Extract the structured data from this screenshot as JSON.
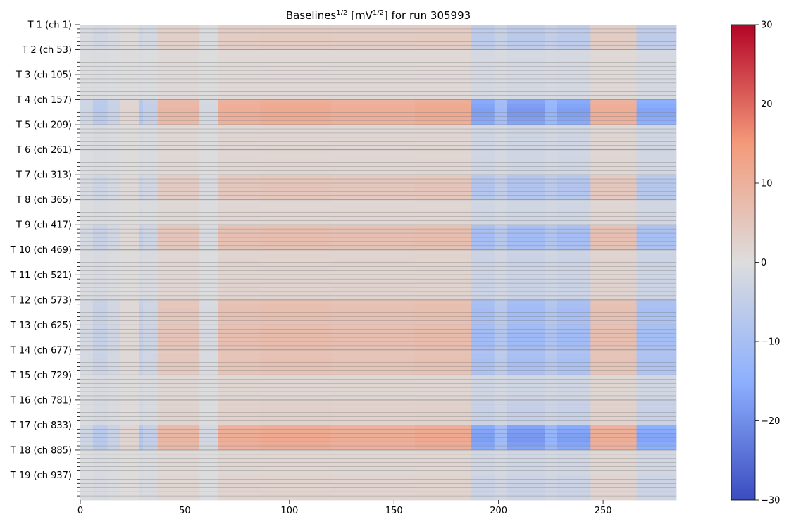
{
  "chart_data": {
    "type": "heatmap",
    "title": {
      "prefix": "Baselines",
      "sup1": "1/2",
      "middle": " [mV",
      "sup2": "1/2",
      "suffix": "] for run 305993"
    },
    "xlabel": "",
    "ylabel": "",
    "x_range": [
      0,
      285
    ],
    "x_ticks": [
      0,
      50,
      100,
      150,
      200,
      250
    ],
    "channels_per_row": 52,
    "rows": 19,
    "y_tick_labels": [
      "T 1 (ch 1)",
      "T 2 (ch 53)",
      "T 3 (ch 105)",
      "T 4 (ch 157)",
      "T 5 (ch 209)",
      "T 6 (ch 261)",
      "T 7 (ch 313)",
      "T 8 (ch 365)",
      "T 9 (ch 417)",
      "T 10 (ch 469)",
      "T 11 (ch 521)",
      "T 12 (ch 573)",
      "T 13 (ch 625)",
      "T 14 (ch 677)",
      "T 15 (ch 729)",
      "T 16 (ch 781)",
      "T 17 (ch 833)",
      "T 18 (ch 885)",
      "T 19 (ch 937)"
    ],
    "colorbar": {
      "colormap": "coolwarm",
      "vmin": -30,
      "vmax": 30,
      "ticks": [
        30,
        20,
        10,
        0,
        -10,
        -20,
        -30
      ]
    },
    "column_profile": [
      {
        "from": 0,
        "to": 6,
        "value": -3
      },
      {
        "from": 6,
        "to": 13,
        "value": -7
      },
      {
        "from": 13,
        "to": 19,
        "value": -4
      },
      {
        "from": 19,
        "to": 28,
        "value": 2
      },
      {
        "from": 28,
        "to": 30,
        "value": -8
      },
      {
        "from": 30,
        "to": 37,
        "value": -5
      },
      {
        "from": 37,
        "to": 57,
        "value": 9
      },
      {
        "from": 57,
        "to": 66,
        "value": -2
      },
      {
        "from": 66,
        "to": 86,
        "value": 11
      },
      {
        "from": 86,
        "to": 120,
        "value": 12
      },
      {
        "from": 120,
        "to": 160,
        "value": 11
      },
      {
        "from": 160,
        "to": 187,
        "value": 12
      },
      {
        "from": 187,
        "to": 198,
        "value": -18
      },
      {
        "from": 198,
        "to": 204,
        "value": -12
      },
      {
        "from": 204,
        "to": 222,
        "value": -19
      },
      {
        "from": 222,
        "to": 228,
        "value": -14
      },
      {
        "from": 228,
        "to": 244,
        "value": -18
      },
      {
        "from": 244,
        "to": 266,
        "value": 11
      },
      {
        "from": 266,
        "to": 285,
        "value": -17
      }
    ],
    "row_strength": [
      0.35,
      0.1,
      0.1,
      1.0,
      0.15,
      0.15,
      0.45,
      0.15,
      0.6,
      0.2,
      0.2,
      0.6,
      0.65,
      0.55,
      0.15,
      0.25,
      1.0,
      0.15,
      0.2
    ]
  },
  "colors": {
    "gridline": "#7f7f7f",
    "neutral": "#dddddd"
  }
}
